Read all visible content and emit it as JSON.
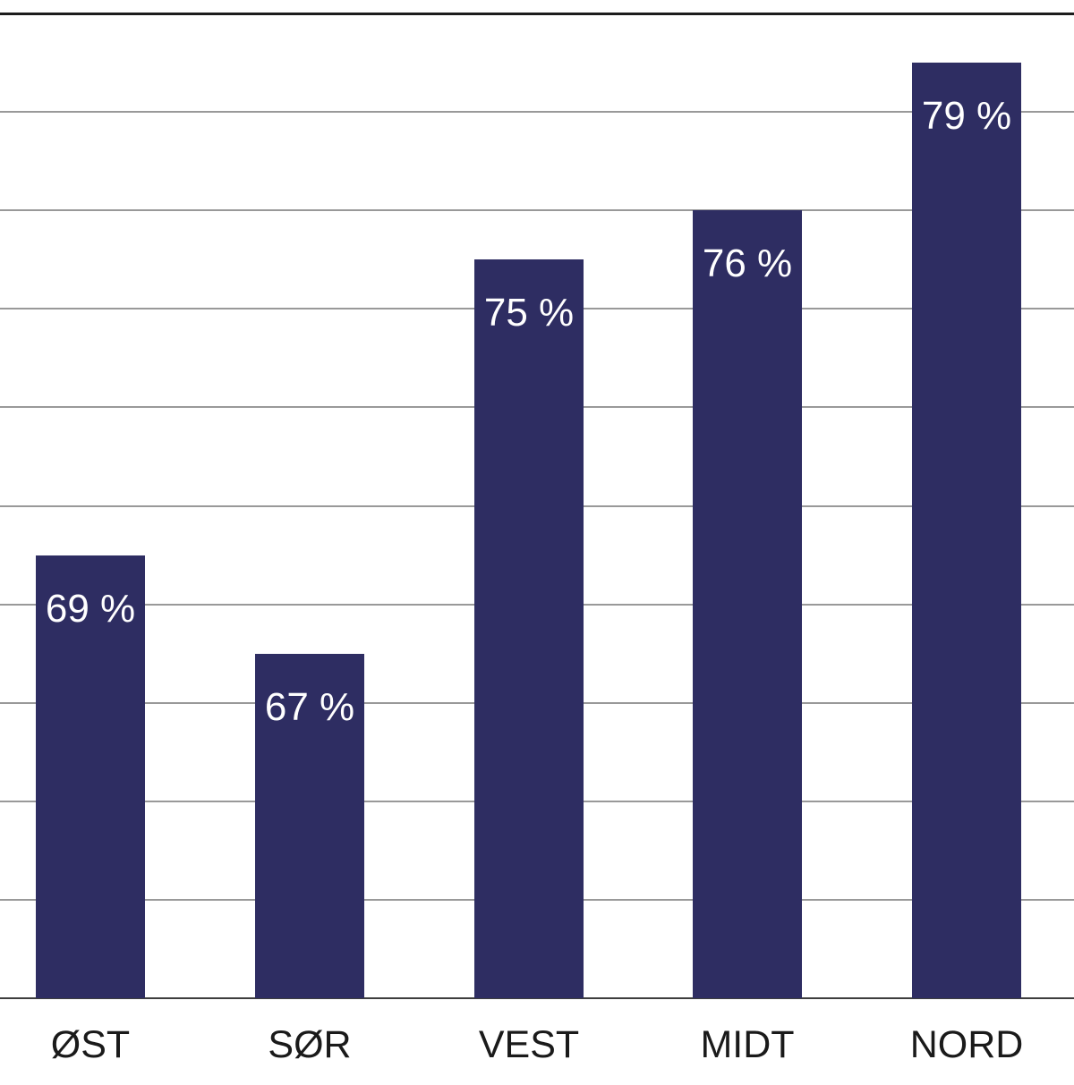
{
  "chart_data": {
    "type": "bar",
    "categories": [
      "ØST",
      "SØR",
      "VEST",
      "MIDT",
      "NORD"
    ],
    "values": [
      69,
      67,
      75,
      76,
      79
    ],
    "value_labels": [
      "69 %",
      "67 %",
      "75 %",
      "76 %",
      "79 %"
    ],
    "title": "",
    "xlabel": "",
    "ylabel": "",
    "ylim": [
      60,
      80
    ],
    "grid_step": 2,
    "grid": true,
    "legend": false,
    "y_tick_labels_visible": false,
    "value_label_position": "inside-top",
    "colors": {
      "bar": "#2e2d62",
      "value_label": "#ffffff",
      "axis_label": "#1a1a1a",
      "gridline": "#999999",
      "top_line": "#1c1c1c",
      "baseline": "#3e3e3e"
    }
  }
}
